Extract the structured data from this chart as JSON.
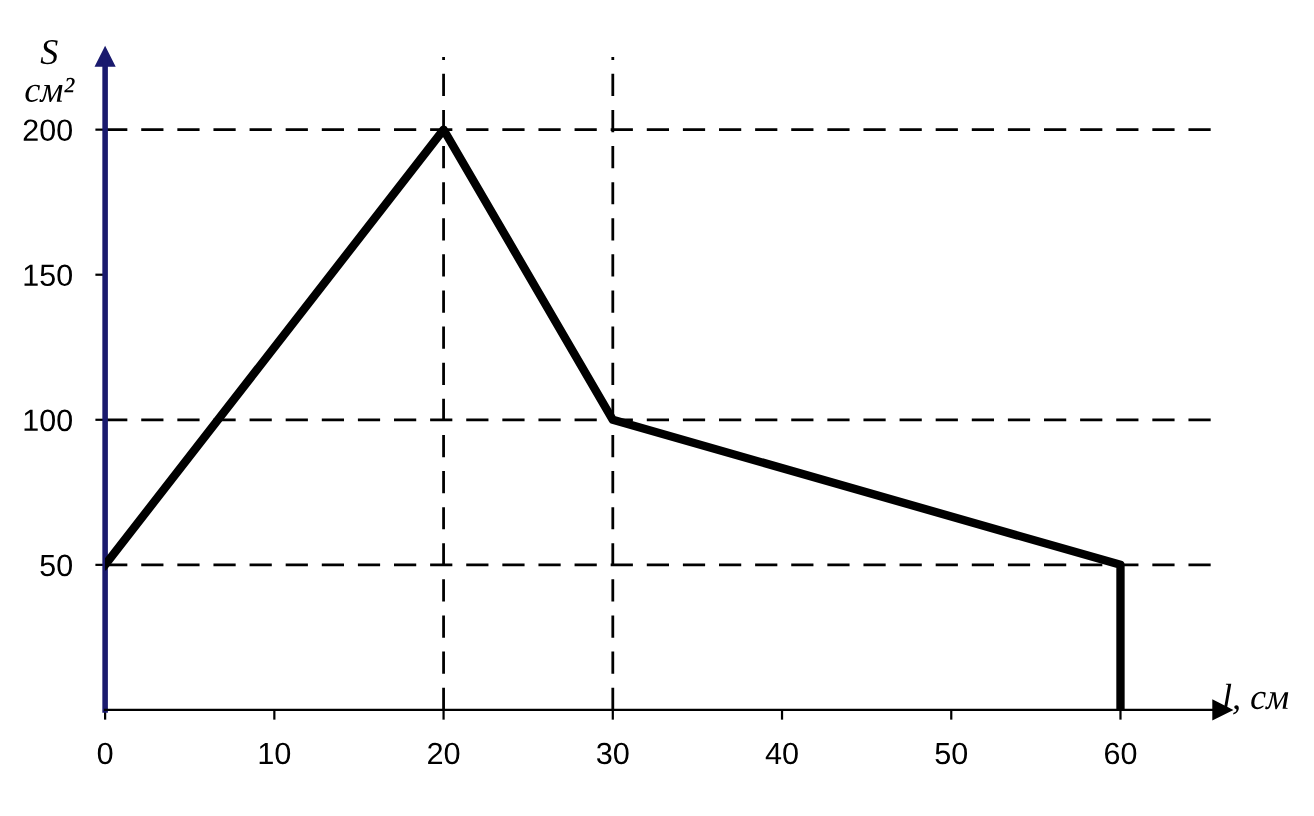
{
  "chart_data": {
    "type": "line",
    "xlabel": "l, см",
    "ylabel": "S\nсм²",
    "x": [
      0,
      20,
      30,
      60,
      60
    ],
    "series": [
      {
        "color": "#000000",
        "values": [
          50,
          200,
          100,
          50,
          0
        ]
      }
    ],
    "xlim": [
      0,
      66
    ],
    "ylim": [
      0,
      225
    ],
    "xticks": [
      0,
      10,
      20,
      30,
      40,
      50,
      60
    ],
    "yticks": [
      50,
      100,
      150,
      200
    ],
    "ref_lines": [
      {
        "axis": "y",
        "value": 200,
        "line_style": "dashed"
      },
      {
        "axis": "y",
        "value": 100,
        "line_style": "dashed"
      },
      {
        "axis": "y",
        "value": 50,
        "line_style": "dashed"
      },
      {
        "axis": "x",
        "value": 20,
        "line_style": "dashed"
      },
      {
        "axis": "x",
        "value": 30,
        "line_style": "dashed"
      }
    ],
    "grid": false,
    "legend": false,
    "line_style": "solid",
    "marker": "none"
  }
}
